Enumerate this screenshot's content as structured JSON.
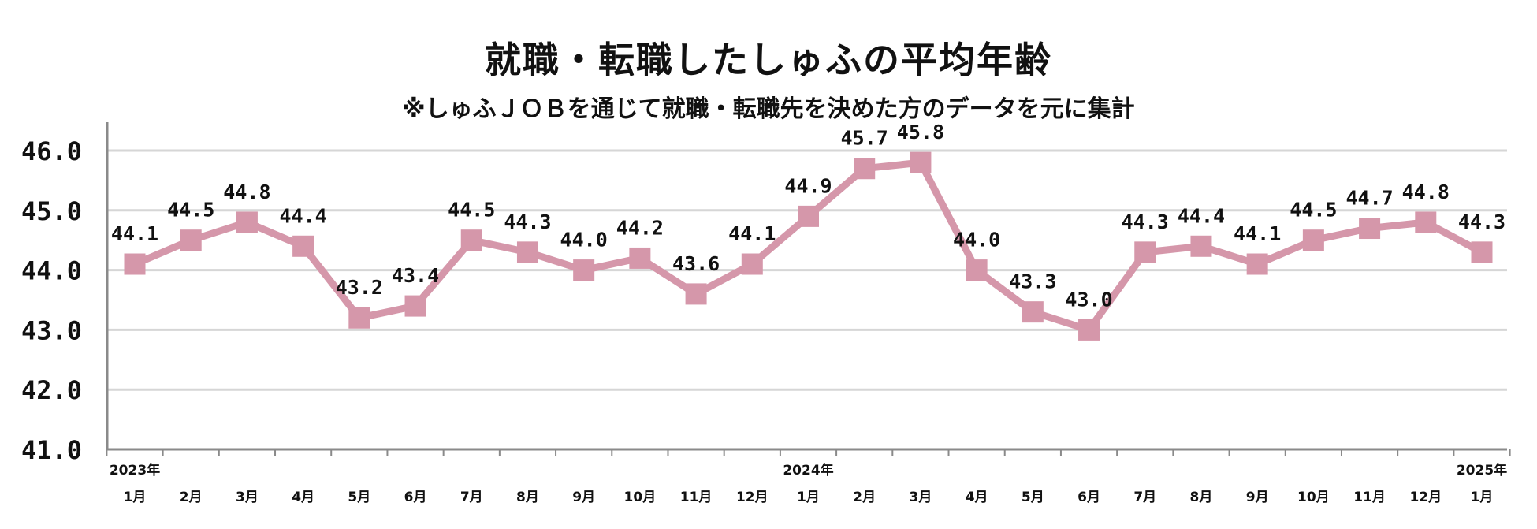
{
  "chart_data": {
    "type": "line",
    "title": "就職・転職したしゅふの平均年齢",
    "subtitle": "※しゅふＪＯＢを通じて就職・転職先を決めた方のデータを元に集計",
    "categories": [
      "1月",
      "2月",
      "3月",
      "4月",
      "5月",
      "6月",
      "7月",
      "8月",
      "9月",
      "10月",
      "11月",
      "12月",
      "1月",
      "2月",
      "3月",
      "4月",
      "5月",
      "6月",
      "7月",
      "8月",
      "9月",
      "10月",
      "11月",
      "12月",
      "1月"
    ],
    "year_labels": [
      {
        "index": 0,
        "label": "2023年"
      },
      {
        "index": 12,
        "label": "2024年"
      },
      {
        "index": 24,
        "label": "2025年"
      }
    ],
    "series": [
      {
        "values": [
          44.1,
          44.5,
          44.8,
          44.4,
          43.2,
          43.4,
          44.5,
          44.3,
          44.0,
          44.2,
          43.6,
          44.1,
          44.9,
          45.7,
          45.8,
          44.0,
          43.3,
          43.0,
          44.3,
          44.4,
          44.1,
          44.5,
          44.7,
          44.8,
          44.3
        ],
        "labels": [
          "44.1",
          "44.5",
          "44.8",
          "44.4",
          "43.2",
          "43.4",
          "44.5",
          "44.3",
          "44.0",
          "44.2",
          "43.6",
          "44.1",
          "44.9",
          "45.7",
          "45.8",
          "44.0",
          "43.3",
          "43.0",
          "44.3",
          "44.4",
          "44.1",
          "44.5",
          "44.7",
          "44.8",
          "44.3"
        ]
      }
    ],
    "ylim": [
      41.0,
      46.0
    ],
    "yticks": [
      41.0,
      42.0,
      43.0,
      44.0,
      45.0,
      46.0
    ],
    "ytick_labels": [
      "41.0",
      "42.0",
      "43.0",
      "44.0",
      "45.0",
      "46.0"
    ],
    "grid": true,
    "colors": {
      "line": "#d597aa",
      "marker": "#d597aa",
      "grid": "#d6d6d6",
      "axis": "#8a8a8a"
    }
  }
}
